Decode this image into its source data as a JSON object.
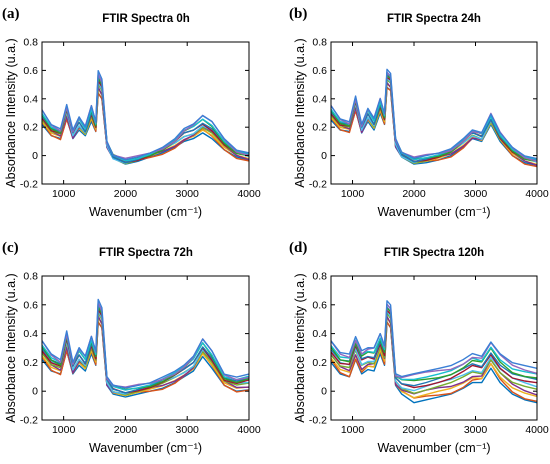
{
  "chart_data": [
    {
      "panel_label": "(a)",
      "title": "FTIR Spectra 0h",
      "type": "line",
      "xlabel": "Wavenumber (cm⁻¹)",
      "ylabel": "Absorbance Intensity (u.a.)",
      "xlim": [
        650,
        4000
      ],
      "ylim": [
        -0.2,
        0.8
      ],
      "xticks": [
        "1000",
        "2000",
        "3000",
        "4000"
      ],
      "yticks": [
        "-0.2",
        "0",
        "0.2",
        "0.4",
        "0.6",
        "0.8"
      ],
      "grid": false,
      "series_count": 12,
      "x": [
        650,
        800,
        950,
        1050,
        1150,
        1250,
        1350,
        1450,
        1520,
        1560,
        1620,
        1700,
        1800,
        2000,
        2200,
        2400,
        2600,
        2800,
        2950,
        3100,
        3250,
        3400,
        3600,
        3800,
        4000
      ],
      "series": [
        {
          "values": [
            0.32,
            0.22,
            0.19,
            0.36,
            0.18,
            0.27,
            0.2,
            0.35,
            0.24,
            0.6,
            0.54,
            0.1,
            0.0,
            -0.03,
            -0.01,
            0.02,
            0.06,
            0.12,
            0.19,
            0.22,
            0.28,
            0.24,
            0.12,
            0.04,
            0.02
          ]
        },
        {
          "values": [
            0.22,
            0.14,
            0.12,
            0.26,
            0.12,
            0.18,
            0.14,
            0.24,
            0.17,
            0.44,
            0.4,
            0.06,
            -0.02,
            -0.06,
            -0.04,
            -0.01,
            0.02,
            0.06,
            0.1,
            0.12,
            0.16,
            0.12,
            0.04,
            -0.01,
            -0.03
          ]
        }
      ]
    },
    {
      "panel_label": "(b)",
      "title": "FTIR Spectra 24h",
      "type": "line",
      "xlabel": "Wavenumber (cm⁻¹)",
      "ylabel": "Absorbance Intensity (u.a.)",
      "xlim": [
        650,
        4000
      ],
      "ylim": [
        -0.2,
        0.8
      ],
      "xticks": [
        "1000",
        "2000",
        "3000",
        "4000"
      ],
      "yticks": [
        "-0.2",
        "0",
        "0.2",
        "0.4",
        "0.6",
        "0.8"
      ],
      "grid": false,
      "series_count": 12,
      "x": [
        650,
        800,
        950,
        1050,
        1150,
        1250,
        1350,
        1450,
        1520,
        1560,
        1620,
        1700,
        1800,
        2000,
        2200,
        2400,
        2600,
        2800,
        2950,
        3100,
        3250,
        3400,
        3600,
        3800,
        4000
      ],
      "series": [
        {
          "values": [
            0.35,
            0.26,
            0.24,
            0.42,
            0.22,
            0.33,
            0.26,
            0.4,
            0.3,
            0.61,
            0.58,
            0.12,
            0.02,
            -0.02,
            0.0,
            0.02,
            0.05,
            0.12,
            0.18,
            0.16,
            0.29,
            0.16,
            0.06,
            0.0,
            -0.02
          ]
        },
        {
          "values": [
            0.25,
            0.18,
            0.17,
            0.32,
            0.16,
            0.24,
            0.18,
            0.3,
            0.22,
            0.48,
            0.46,
            0.06,
            -0.01,
            -0.06,
            -0.05,
            -0.03,
            0.0,
            0.06,
            0.12,
            0.1,
            0.22,
            0.1,
            0.0,
            -0.05,
            -0.07
          ]
        }
      ]
    },
    {
      "panel_label": "(c)",
      "title": "FTIR Spectra 72h",
      "type": "line",
      "xlabel": "Wavenumber (cm⁻¹)",
      "ylabel": "Absorbance Intensity (u.a.)",
      "xlim": [
        650,
        4000
      ],
      "ylim": [
        -0.2,
        0.8
      ],
      "xticks": [
        "1000",
        "2000",
        "3000",
        "4000"
      ],
      "yticks": [
        "-0.2",
        "0",
        "0.2",
        "0.4",
        "0.6",
        "0.8"
      ],
      "grid": false,
      "series_count": 12,
      "x": [
        650,
        800,
        950,
        1050,
        1150,
        1250,
        1350,
        1450,
        1520,
        1560,
        1620,
        1700,
        1800,
        2000,
        2200,
        2400,
        2600,
        2800,
        2950,
        3100,
        3250,
        3400,
        3600,
        3800,
        4000
      ],
      "series": [
        {
          "values": [
            0.35,
            0.26,
            0.22,
            0.42,
            0.2,
            0.3,
            0.24,
            0.38,
            0.28,
            0.64,
            0.58,
            0.1,
            0.04,
            0.02,
            0.04,
            0.06,
            0.1,
            0.14,
            0.18,
            0.24,
            0.36,
            0.28,
            0.12,
            0.1,
            0.12
          ]
        },
        {
          "values": [
            0.22,
            0.14,
            0.12,
            0.28,
            0.12,
            0.18,
            0.14,
            0.26,
            0.18,
            0.48,
            0.44,
            0.04,
            -0.02,
            -0.04,
            -0.02,
            0.0,
            0.02,
            0.06,
            0.1,
            0.14,
            0.24,
            0.16,
            0.04,
            0.0,
            0.01
          ]
        }
      ]
    },
    {
      "panel_label": "(d)",
      "title": "FTIR Spectra 120h",
      "type": "line",
      "xlabel": "Wavenumber (cm⁻¹)",
      "ylabel": "Absorbance Intensity (u.a.)",
      "xlim": [
        650,
        4000
      ],
      "ylim": [
        -0.2,
        0.8
      ],
      "xticks": [
        "1000",
        "2000",
        "3000",
        "4000"
      ],
      "yticks": [
        "-0.2",
        "0",
        "0.2",
        "0.4",
        "0.6",
        "0.8"
      ],
      "grid": false,
      "series_count": 12,
      "x": [
        650,
        800,
        950,
        1050,
        1150,
        1250,
        1350,
        1450,
        1520,
        1560,
        1620,
        1700,
        1800,
        2000,
        2200,
        2400,
        2600,
        2800,
        2950,
        3100,
        3250,
        3400,
        3600,
        3800,
        4000
      ],
      "series": [
        {
          "values": [
            0.35,
            0.27,
            0.26,
            0.38,
            0.28,
            0.3,
            0.3,
            0.4,
            0.32,
            0.63,
            0.6,
            0.12,
            0.1,
            0.12,
            0.14,
            0.16,
            0.18,
            0.22,
            0.26,
            0.24,
            0.34,
            0.26,
            0.2,
            0.18,
            0.16
          ]
        },
        {
          "values": [
            0.2,
            0.12,
            0.1,
            0.22,
            0.12,
            0.15,
            0.14,
            0.26,
            0.18,
            0.48,
            0.44,
            0.04,
            -0.02,
            -0.08,
            -0.06,
            -0.04,
            -0.02,
            0.02,
            0.06,
            0.06,
            0.16,
            0.06,
            -0.02,
            -0.06,
            -0.08
          ]
        }
      ]
    }
  ],
  "colors": [
    "#0072bd",
    "#d95319",
    "#edb120",
    "#7e2f8e",
    "#77ac30",
    "#4dbeee",
    "#a2142f",
    "#1f77b4",
    "#2ca02c",
    "#17becf",
    "#9467bd",
    "#3a7fd5"
  ]
}
